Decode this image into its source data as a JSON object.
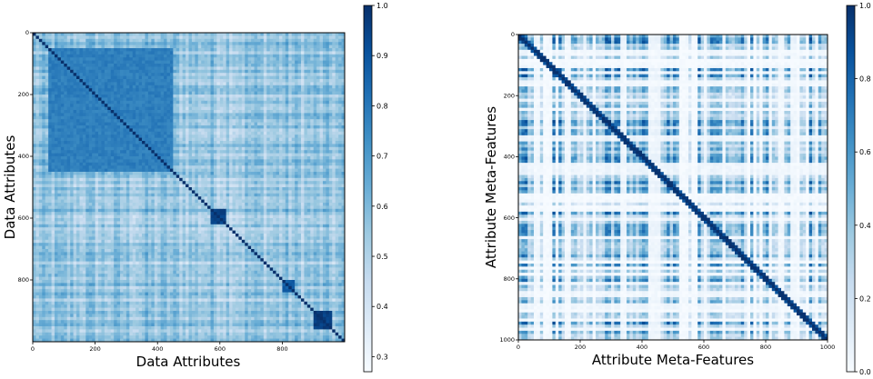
{
  "chart_data": [
    {
      "type": "heatmap",
      "title": "",
      "xlabel": "Data Attributes",
      "ylabel": "Data Attributes",
      "x_ticks": [
        0,
        200,
        400,
        600,
        800
      ],
      "y_ticks": [
        0,
        200,
        400,
        600,
        800
      ],
      "xlim": [
        0,
        1000
      ],
      "ylim": [
        1000,
        0
      ],
      "colormap": "Blues",
      "colorbar": {
        "min": 0.27,
        "max": 1.0,
        "ticks": [
          "0.3",
          "0.4",
          "0.5",
          "0.6",
          "0.7",
          "0.8",
          "0.9",
          "1.0"
        ]
      },
      "diagonal_value": 1.0,
      "blocks": [
        {
          "range": [
            50,
            450
          ],
          "value": 0.78
        },
        {
          "range": [
            575,
            620
          ],
          "value": 0.95
        },
        {
          "range": [
            800,
            840
          ],
          "value": 0.88
        },
        {
          "range": [
            905,
            960
          ],
          "value": 0.96
        }
      ],
      "background_value": 0.55
    },
    {
      "type": "heatmap",
      "title": "",
      "xlabel": "Attribute Meta-Features",
      "ylabel": "Attribute Meta-Features",
      "x_ticks": [
        0,
        200,
        400,
        600,
        800,
        1000
      ],
      "y_ticks": [
        0,
        200,
        400,
        600,
        800,
        1000
      ],
      "xlim": [
        0,
        1000
      ],
      "ylim": [
        1000,
        0
      ],
      "colormap": "Blues",
      "colorbar": {
        "min": 0.0,
        "max": 1.0,
        "ticks": [
          "0.0",
          "0.2",
          "0.4",
          "0.6",
          "0.8",
          "1.0"
        ]
      },
      "diagonal_value": 1.0,
      "background_value": 0.25
    }
  ]
}
